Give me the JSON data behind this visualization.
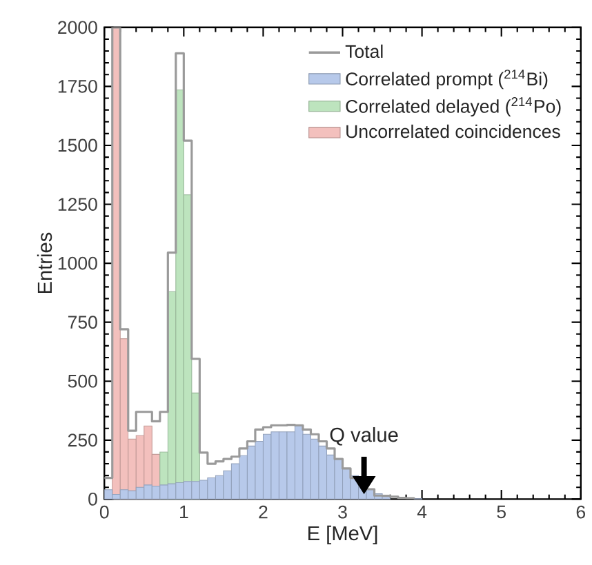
{
  "chart_data": {
    "type": "histogram",
    "xlabel": "E [MeV]",
    "ylabel": "Entries",
    "bins": [
      0,
      0.1,
      0.2,
      0.3,
      0.4,
      0.5,
      0.6,
      0.7,
      0.8,
      0.9,
      1.0,
      1.1,
      1.2,
      1.3,
      1.4,
      1.5,
      1.6,
      1.7,
      1.8,
      1.9,
      2.0,
      2.1,
      2.2,
      2.3,
      2.4,
      2.5,
      2.6,
      2.7,
      2.8,
      2.9,
      3.0,
      3.1,
      3.2,
      3.3,
      3.4,
      3.5,
      3.6,
      3.7,
      3.8,
      3.9,
      4.0
    ],
    "series": [
      {
        "name": "Total",
        "type": "step",
        "color": "#9a9a9a",
        "x": [
          0,
          0.1,
          0.2,
          0.3,
          0.4,
          0.5,
          0.6,
          0.7,
          0.8,
          0.9,
          1.0,
          1.1,
          1.2,
          1.3,
          1.4,
          1.5,
          1.6,
          1.7,
          1.8,
          1.9,
          2.0,
          2.1,
          2.2,
          2.3,
          2.4,
          2.5,
          2.6,
          2.7,
          2.8,
          2.9,
          3.0,
          3.1,
          3.2,
          3.3,
          3.4,
          3.5,
          3.6,
          3.7,
          3.8,
          3.9
        ],
        "values": [
          90,
          2000,
          720,
          290,
          370,
          370,
          330,
          370,
          1045,
          1890,
          1520,
          595,
          197,
          150,
          160,
          170,
          180,
          215,
          245,
          295,
          305,
          313,
          313,
          315,
          313,
          295,
          275,
          245,
          215,
          170,
          130,
          90,
          70,
          42,
          15,
          14,
          10,
          5,
          4,
          2
        ]
      },
      {
        "name": "Correlated prompt ($^{214}$Bi)",
        "color": "#b7c9ea",
        "values": [
          40,
          20,
          40,
          35,
          50,
          60,
          55,
          60,
          65,
          70,
          75,
          75,
          80,
          90,
          100,
          120,
          150,
          185,
          225,
          245,
          275,
          285,
          285,
          285,
          313,
          275,
          255,
          225,
          187,
          170,
          130,
          100,
          70,
          42,
          23,
          14,
          null,
          null,
          null,
          2
        ]
      },
      {
        "name": "Correlated delayed ($^{214}$Po)",
        "color": "#bde4be",
        "values": [
          null,
          null,
          null,
          null,
          null,
          null,
          null,
          200,
          880,
          1735,
          1290,
          450,
          null,
          null,
          null,
          null,
          null,
          null,
          null,
          null,
          null,
          null,
          null,
          null,
          null,
          null,
          null,
          null,
          null,
          null,
          null,
          null,
          null,
          null,
          null,
          null,
          null,
          null,
          null,
          null
        ]
      },
      {
        "name": "Uncorrelated coincidences",
        "color": "#f3c0bd",
        "values": [
          null,
          2000,
          680,
          255,
          270,
          310,
          190,
          null,
          null,
          null,
          null,
          null,
          null,
          null,
          null,
          null,
          null,
          null,
          null,
          null,
          null,
          null,
          null,
          null,
          null,
          null,
          null,
          null,
          null,
          null,
          null,
          null,
          null,
          null,
          null,
          null,
          null,
          null,
          null,
          null
        ]
      }
    ],
    "xlim": [
      0,
      6
    ],
    "ylim": [
      0,
      2000
    ],
    "xticks": [
      0,
      1,
      2,
      3,
      4,
      5,
      6
    ],
    "yticks": [
      0,
      250,
      500,
      750,
      1000,
      1250,
      1500,
      1750,
      2000
    ],
    "legend": "top right",
    "annotations": [
      {
        "text": "Q value",
        "x": 3.27,
        "y": 20
      }
    ]
  }
}
